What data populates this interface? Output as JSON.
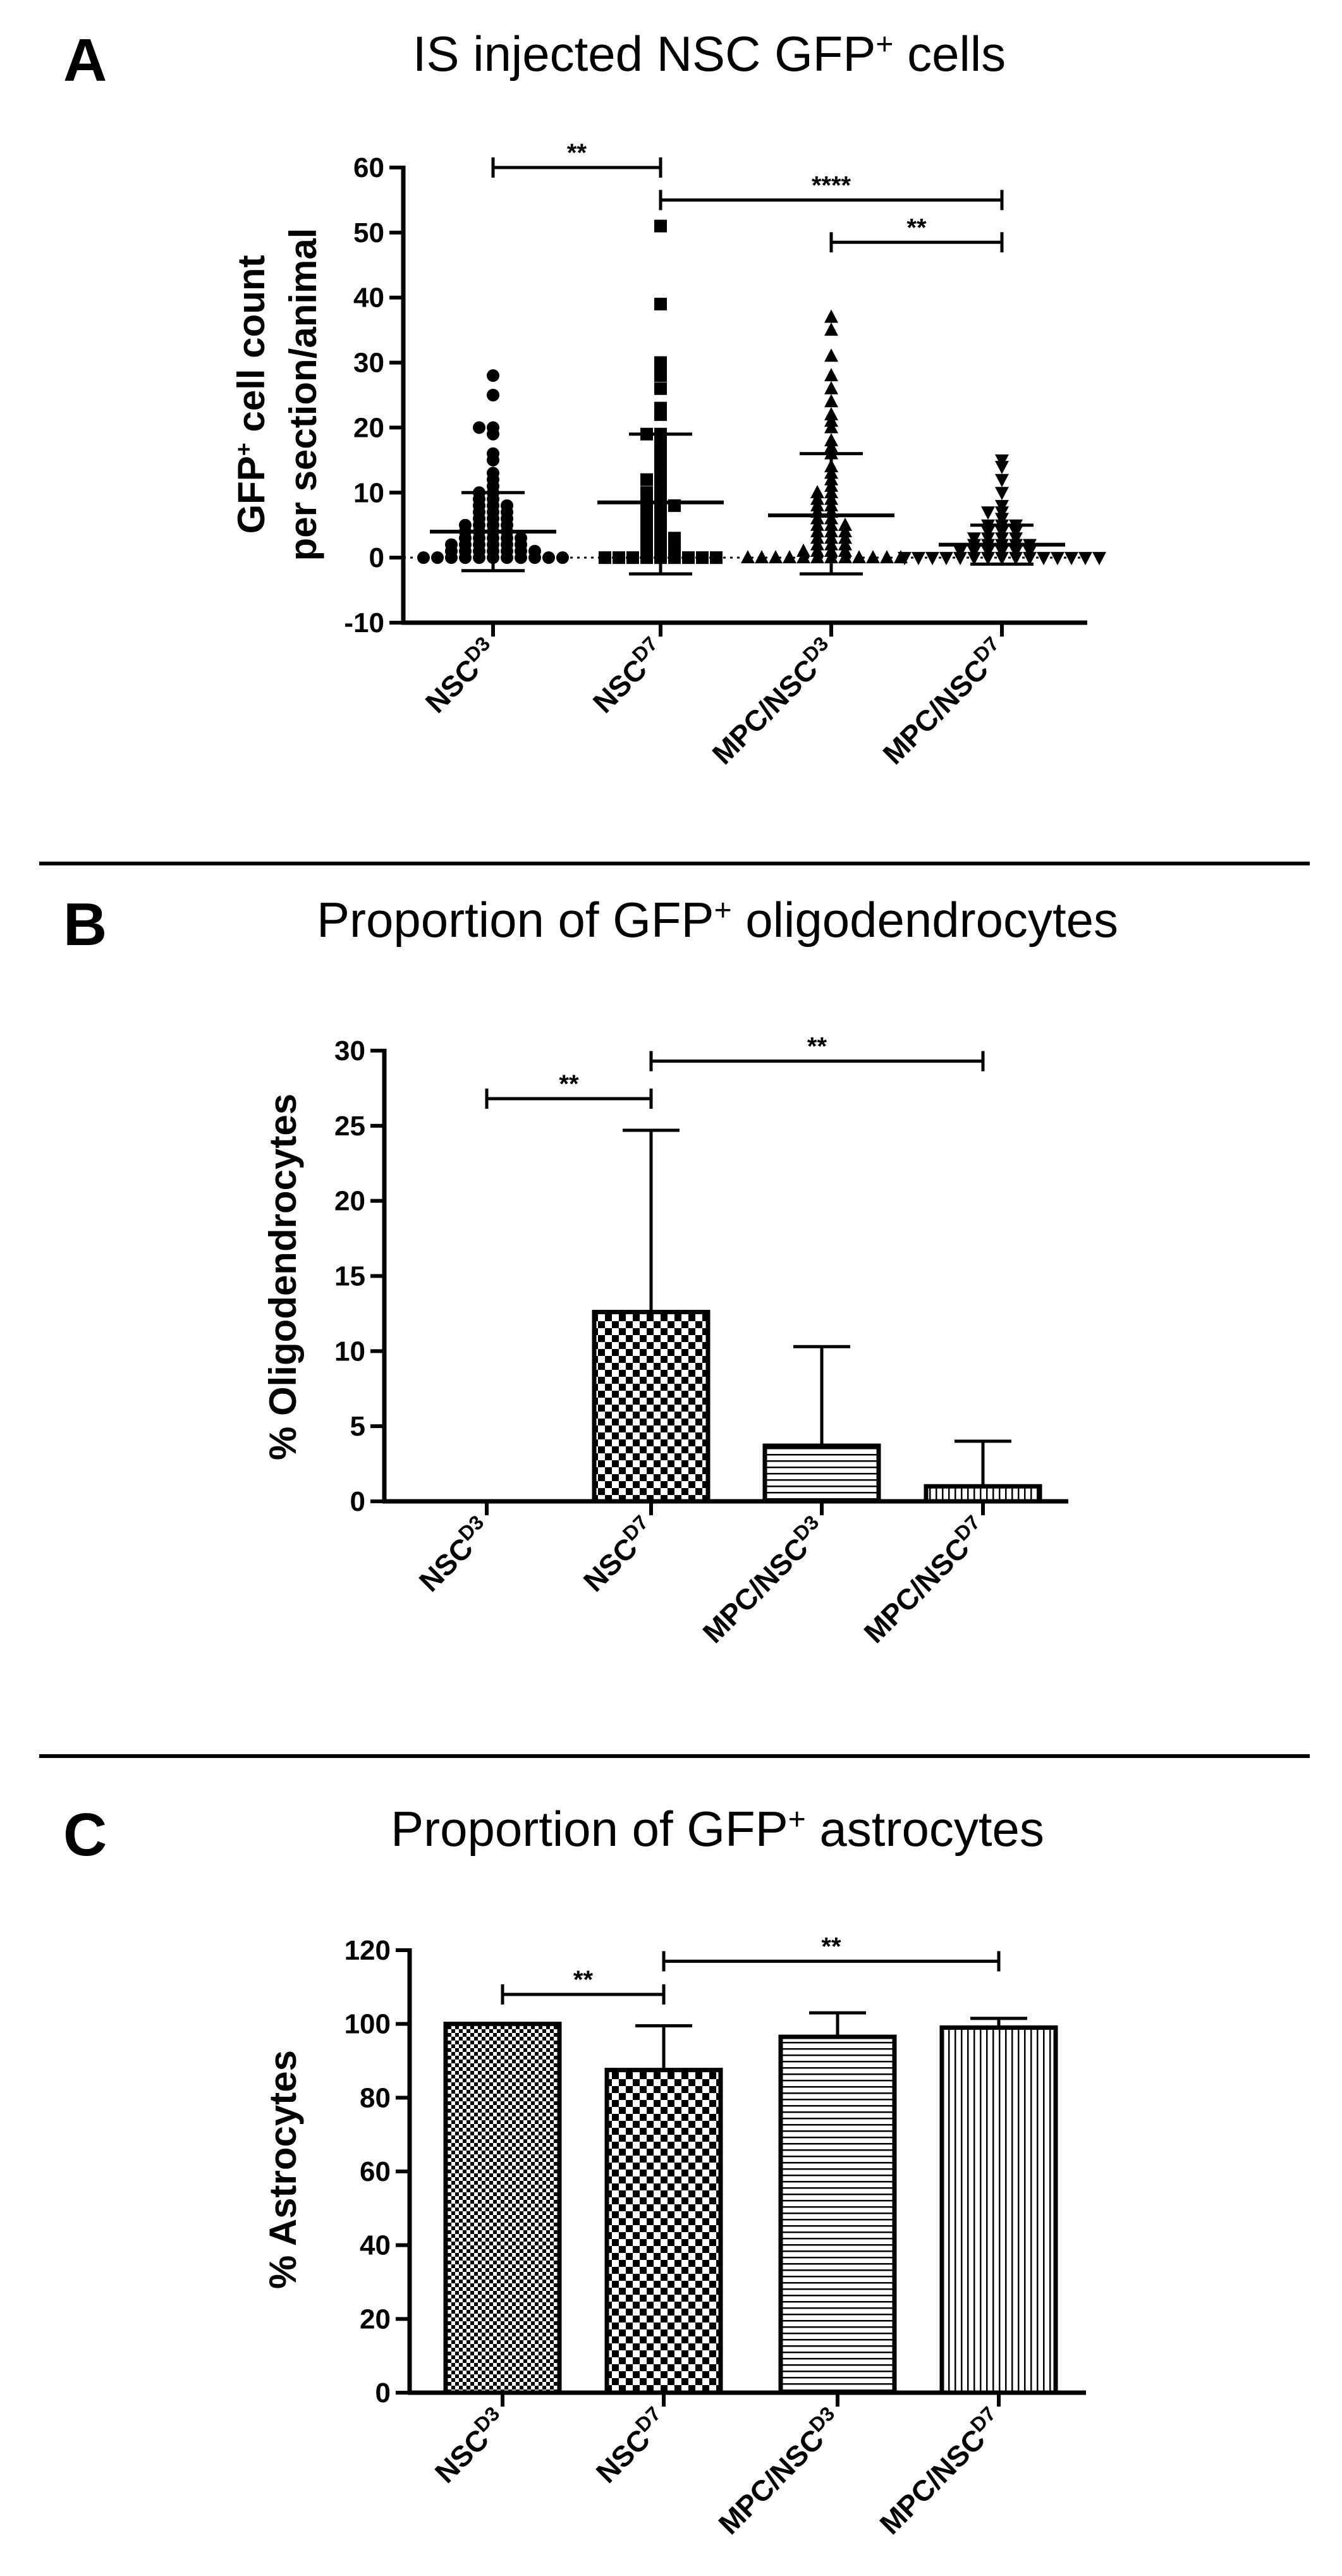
{
  "chart_data": [
    {
      "panel": "A",
      "type": "scatter",
      "title_parts": [
        "IS injected NSC GFP",
        "+",
        " cells"
      ],
      "ylabel_parts": [
        "GFP",
        "+",
        " cell count"
      ],
      "ylabel_line2": "per section/animal",
      "ylim": [
        -10,
        60
      ],
      "yticks": [
        -10,
        0,
        10,
        20,
        30,
        40,
        50,
        60
      ],
      "categories": [
        {
          "base": "NSC",
          "sup": "D3"
        },
        {
          "base": "NSC",
          "sup": "D7"
        },
        {
          "base": "MPC/NSC",
          "sup": "D3"
        },
        {
          "base": "MPC/NSC",
          "sup": "D7"
        }
      ],
      "markers": [
        "circle",
        "square",
        "triangle-up",
        "triangle-down"
      ],
      "series": [
        {
          "values": [
            28,
            25,
            20,
            20,
            19,
            16,
            15,
            13,
            12,
            11,
            10,
            10,
            9,
            9,
            8,
            8,
            8,
            7,
            7,
            7,
            6,
            6,
            6,
            5,
            5,
            5,
            5,
            4,
            4,
            4,
            4,
            3,
            3,
            3,
            3,
            3,
            2,
            2,
            2,
            2,
            2,
            2,
            1,
            1,
            1,
            1,
            1,
            1,
            1,
            0,
            0,
            0,
            0,
            0,
            0,
            0,
            0,
            0,
            0,
            0
          ],
          "mean": 4,
          "sd_low": -2,
          "sd_high": 10
        },
        {
          "values": [
            51,
            39,
            30,
            29,
            28,
            26,
            23,
            22,
            19,
            19,
            18,
            17,
            16,
            15,
            14,
            13,
            12,
            12,
            11,
            10,
            10,
            9,
            9,
            8,
            8,
            8,
            7,
            7,
            6,
            6,
            5,
            5,
            4,
            4,
            3,
            3,
            3,
            2,
            2,
            2,
            1,
            1,
            1,
            0,
            0,
            0,
            0,
            0,
            0,
            0,
            0,
            0
          ],
          "mean": 8.5,
          "sd_low": -2.5,
          "sd_high": 19
        },
        {
          "values": [
            37,
            35,
            31,
            28,
            26,
            24,
            22,
            21,
            20,
            18,
            17,
            16,
            14,
            13,
            12,
            11,
            10,
            10,
            9,
            9,
            8,
            8,
            7,
            7,
            6,
            6,
            5,
            5,
            5,
            4,
            4,
            4,
            3,
            3,
            3,
            2,
            2,
            2,
            1,
            1,
            1,
            1,
            0,
            0,
            0,
            0,
            0,
            0,
            0,
            0,
            0,
            0,
            0,
            0
          ],
          "mean": 6.5,
          "sd_low": -2.5,
          "sd_high": 16
        },
        {
          "values": [
            15,
            14,
            12,
            10,
            8,
            7,
            7,
            6,
            5,
            5,
            5,
            4,
            4,
            4,
            3,
            3,
            3,
            3,
            2,
            2,
            2,
            2,
            2,
            1,
            1,
            1,
            1,
            1,
            1,
            0,
            0,
            0,
            0,
            0,
            0,
            0,
            0,
            0,
            0,
            0,
            0,
            0,
            0,
            0
          ],
          "mean": 2,
          "sd_low": -1,
          "sd_high": 5
        }
      ],
      "reference_line": 0,
      "significance": [
        {
          "from": 0,
          "to": 1,
          "y": 60,
          "label": "**"
        },
        {
          "from": 1,
          "to": 3,
          "y": 55,
          "label": "****"
        },
        {
          "from": 2,
          "to": 3,
          "y": 48.5,
          "label": "**"
        }
      ]
    },
    {
      "panel": "B",
      "type": "bar",
      "title_parts": [
        "Proportion of GFP",
        "+",
        " oligodendrocytes"
      ],
      "ylabel": "% Oligodendrocytes",
      "ylim": [
        0,
        30
      ],
      "yticks": [
        0,
        5,
        10,
        15,
        20,
        25,
        30
      ],
      "categories": [
        {
          "base": "NSC",
          "sup": "D3"
        },
        {
          "base": "NSC",
          "sup": "D7"
        },
        {
          "base": "MPC/NSC",
          "sup": "D3"
        },
        {
          "base": "MPC/NSC",
          "sup": "D7"
        }
      ],
      "values": [
        0,
        12.6,
        3.7,
        1.0
      ],
      "errors": [
        0,
        24.7,
        10.3,
        4.0
      ],
      "patterns": [
        "none",
        "check",
        "hlines",
        "vlines"
      ],
      "significance": [
        {
          "from": 0,
          "to": 1,
          "y": 26.8,
          "label": "**"
        },
        {
          "from": 1,
          "to": 3,
          "y": 29.3,
          "label": "**"
        }
      ]
    },
    {
      "panel": "C",
      "type": "bar",
      "title_parts": [
        "Proportion of GFP",
        "+",
        " astrocytes"
      ],
      "ylabel": "% Astrocytes",
      "ylim": [
        0,
        120
      ],
      "yticks": [
        0,
        20,
        40,
        60,
        80,
        100,
        120
      ],
      "categories": [
        {
          "base": "NSC",
          "sup": "D3"
        },
        {
          "base": "NSC",
          "sup": "D7"
        },
        {
          "base": "MPC/NSC",
          "sup": "D3"
        },
        {
          "base": "MPC/NSC",
          "sup": "D7"
        }
      ],
      "values": [
        100,
        87.5,
        96.5,
        99
      ],
      "errors": [
        100,
        99.5,
        103,
        101.5
      ],
      "patterns": [
        "fine-check",
        "check",
        "hlines",
        "vlines"
      ],
      "significance": [
        {
          "from": 0,
          "to": 1,
          "y": 108,
          "label": "**"
        },
        {
          "from": 1,
          "to": 3,
          "y": 117,
          "label": "**"
        }
      ]
    }
  ]
}
